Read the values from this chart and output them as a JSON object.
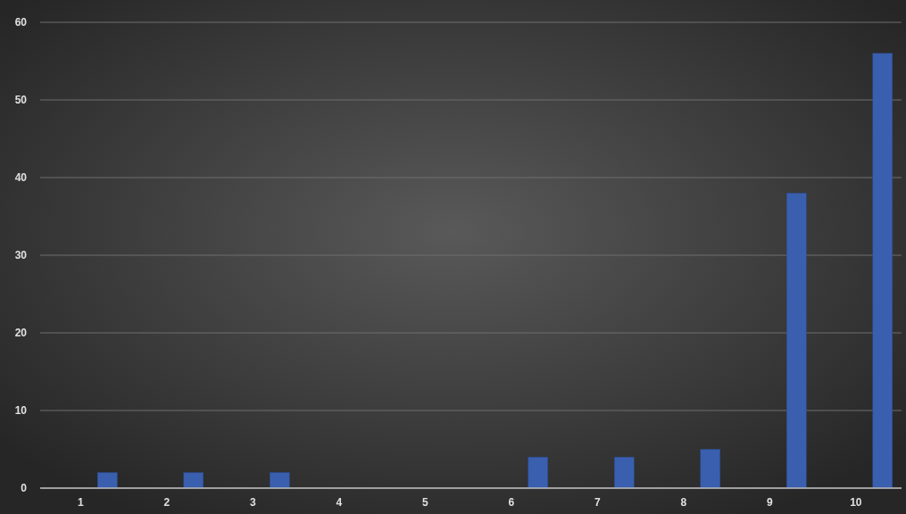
{
  "chart_data": {
    "type": "bar",
    "categories": [
      "1",
      "2",
      "3",
      "4",
      "5",
      "6",
      "7",
      "8",
      "9",
      "10"
    ],
    "values": [
      2,
      2,
      2,
      0,
      0,
      4,
      4,
      5,
      38,
      56
    ],
    "color": "#3a5fae",
    "ylim": [
      0,
      60
    ],
    "yticks": [
      0,
      10,
      20,
      30,
      40,
      50,
      60
    ],
    "grid": "y"
  }
}
